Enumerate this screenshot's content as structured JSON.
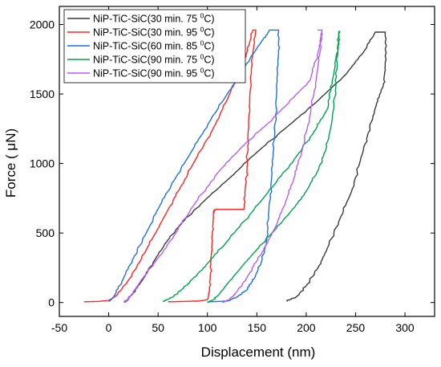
{
  "chart_data": {
    "type": "line",
    "title": "",
    "xlabel": "Displacement (nm)",
    "ylabel": "Force ( μN)",
    "xlim": [
      -50,
      330
    ],
    "ylim": [
      -100,
      2130
    ],
    "x_ticks": [
      "-50",
      "0",
      "50",
      "100",
      "150",
      "200",
      "250",
      "300"
    ],
    "x_tick_values": [
      -50,
      0,
      50,
      100,
      150,
      200,
      250,
      300
    ],
    "y_ticks": [
      "0",
      "500",
      "1000",
      "1500",
      "2000"
    ],
    "y_tick_values": [
      0,
      500,
      1000,
      1500,
      2000
    ],
    "grid": false,
    "legend_position": "top-left",
    "series": [
      {
        "name": "NiP-TiC-SiC(30 min. 75 °C)",
        "legend": {
          "prefix": "NiP-TiC-SiC(30 min. 75 ",
          "sup": "0",
          "suffix": "C)"
        },
        "color": "#3a3a3a",
        "loading": [
          [
            16,
            0
          ],
          [
            24,
            60
          ],
          [
            34,
            160
          ],
          [
            46,
            300
          ],
          [
            60,
            450
          ],
          [
            75,
            580
          ],
          [
            95,
            720
          ],
          [
            120,
            880
          ],
          [
            150,
            1080
          ],
          [
            180,
            1260
          ],
          [
            210,
            1440
          ],
          [
            240,
            1640
          ],
          [
            258,
            1800
          ],
          [
            270,
            1945
          ]
        ],
        "hold": [
          [
            270,
            1945
          ],
          [
            280,
            1945
          ]
        ],
        "unloading": [
          [
            280,
            1945
          ],
          [
            280,
            1700
          ],
          [
            278,
            1560
          ],
          [
            270,
            1400
          ],
          [
            262,
            1200
          ],
          [
            254,
            1000
          ],
          [
            246,
            800
          ],
          [
            234,
            600
          ],
          [
            222,
            400
          ],
          [
            212,
            250
          ],
          [
            200,
            120
          ],
          [
            190,
            40
          ],
          [
            180,
            10
          ]
        ]
      },
      {
        "name": "NiP-TiC-SiC(30 min. 95 °C)",
        "legend": {
          "prefix": "NiP-TiC-SiC(30 min. 95 ",
          "sup": "0",
          "suffix": "C)"
        },
        "color": "#ff2222",
        "loading": [
          [
            -25,
            5
          ],
          [
            -10,
            8
          ],
          [
            0,
            15
          ],
          [
            8,
            50
          ],
          [
            20,
            160
          ],
          [
            32,
            300
          ],
          [
            45,
            470
          ],
          [
            58,
            640
          ],
          [
            72,
            820
          ],
          [
            88,
            1030
          ],
          [
            105,
            1240
          ],
          [
            120,
            1460
          ],
          [
            132,
            1650
          ],
          [
            140,
            1800
          ],
          [
            146,
            1960
          ]
        ],
        "hold": [
          [
            146,
            1960
          ],
          [
            149,
            1960
          ]
        ],
        "unloading": [
          [
            149,
            1960
          ],
          [
            146,
            1800
          ],
          [
            143,
            1500
          ],
          [
            141,
            1200
          ],
          [
            140,
            950
          ],
          [
            138,
            800
          ],
          [
            137,
            670
          ],
          [
            120,
            670
          ],
          [
            108,
            670
          ],
          [
            106,
            640
          ],
          [
            105,
            500
          ],
          [
            104,
            350
          ],
          [
            103,
            200
          ],
          [
            102,
            80
          ],
          [
            100,
            20
          ],
          [
            90,
            10
          ],
          [
            60,
            5
          ]
        ]
      },
      {
        "name": "NiP-TiC-SiC(60 min. 85 °C)",
        "legend": {
          "prefix": "NiP-TiC-SiC(60 min. 85 ",
          "sup": "0",
          "suffix": "C)"
        },
        "color": "#1f6fe0",
        "loading": [
          [
            0,
            5
          ],
          [
            5,
            40
          ],
          [
            14,
            160
          ],
          [
            25,
            320
          ],
          [
            38,
            500
          ],
          [
            52,
            700
          ],
          [
            68,
            900
          ],
          [
            85,
            1100
          ],
          [
            102,
            1300
          ],
          [
            120,
            1500
          ],
          [
            138,
            1700
          ],
          [
            155,
            1880
          ],
          [
            163,
            1960
          ]
        ],
        "hold": [
          [
            163,
            1960
          ],
          [
            172,
            1960
          ]
        ],
        "unloading": [
          [
            172,
            1960
          ],
          [
            172,
            1800
          ],
          [
            170,
            1500
          ],
          [
            168,
            1200
          ],
          [
            165,
            900
          ],
          [
            162,
            650
          ],
          [
            160,
            450
          ],
          [
            155,
            300
          ],
          [
            148,
            180
          ],
          [
            140,
            90
          ],
          [
            130,
            40
          ],
          [
            120,
            10
          ],
          [
            100,
            5
          ]
        ]
      },
      {
        "name": "NiP-TiC-SiC(90 min. 75 °C)",
        "legend": {
          "prefix": "NiP-TiC-SiC(90 min. 75 ",
          "sup": "0",
          "suffix": "C)"
        },
        "color": "#00a050",
        "loading": [
          [
            100,
            0
          ],
          [
            106,
            20
          ],
          [
            112,
            60
          ],
          [
            122,
            150
          ],
          [
            135,
            260
          ],
          [
            150,
            380
          ],
          [
            168,
            520
          ],
          [
            185,
            660
          ],
          [
            200,
            800
          ],
          [
            212,
            950
          ],
          [
            220,
            1100
          ],
          [
            226,
            1300
          ],
          [
            230,
            1550
          ],
          [
            232,
            1800
          ],
          [
            233,
            1950
          ]
        ],
        "hold": [
          [
            233,
            1950
          ],
          [
            234,
            1950
          ]
        ],
        "unloading": [
          [
            234,
            1950
          ],
          [
            232,
            1850
          ],
          [
            228,
            1650
          ],
          [
            222,
            1400
          ],
          [
            210,
            1250
          ],
          [
            190,
            1050
          ],
          [
            168,
            850
          ],
          [
            145,
            650
          ],
          [
            120,
            440
          ],
          [
            100,
            280
          ],
          [
            85,
            170
          ],
          [
            75,
            100
          ],
          [
            65,
            40
          ],
          [
            55,
            5
          ]
        ]
      },
      {
        "name": "NiP-TiC-SiC(90 min. 95 °C)",
        "legend": {
          "prefix": "NiP-TiC-SiC(90 min. 95 ",
          "sup": "0",
          "suffix": "C)"
        },
        "color": "#b85cf5",
        "loading": [
          [
            115,
            0
          ],
          [
            122,
            20
          ],
          [
            130,
            80
          ],
          [
            140,
            180
          ],
          [
            150,
            300
          ],
          [
            160,
            420
          ],
          [
            170,
            560
          ],
          [
            180,
            740
          ],
          [
            188,
            900
          ],
          [
            196,
            1100
          ],
          [
            204,
            1350
          ],
          [
            210,
            1600
          ],
          [
            214,
            1800
          ],
          [
            216,
            1960
          ]
        ],
        "hold": [
          [
            212,
            1960
          ],
          [
            216,
            1960
          ]
        ],
        "unloading": [
          [
            216,
            1960
          ],
          [
            212,
            1800
          ],
          [
            204,
            1600
          ],
          [
            180,
            1420
          ],
          [
            160,
            1280
          ],
          [
            135,
            1120
          ],
          [
            110,
            930
          ],
          [
            88,
            720
          ],
          [
            68,
            500
          ],
          [
            50,
            320
          ],
          [
            35,
            180
          ],
          [
            25,
            80
          ],
          [
            20,
            20
          ],
          [
            15,
            5
          ]
        ]
      }
    ]
  }
}
